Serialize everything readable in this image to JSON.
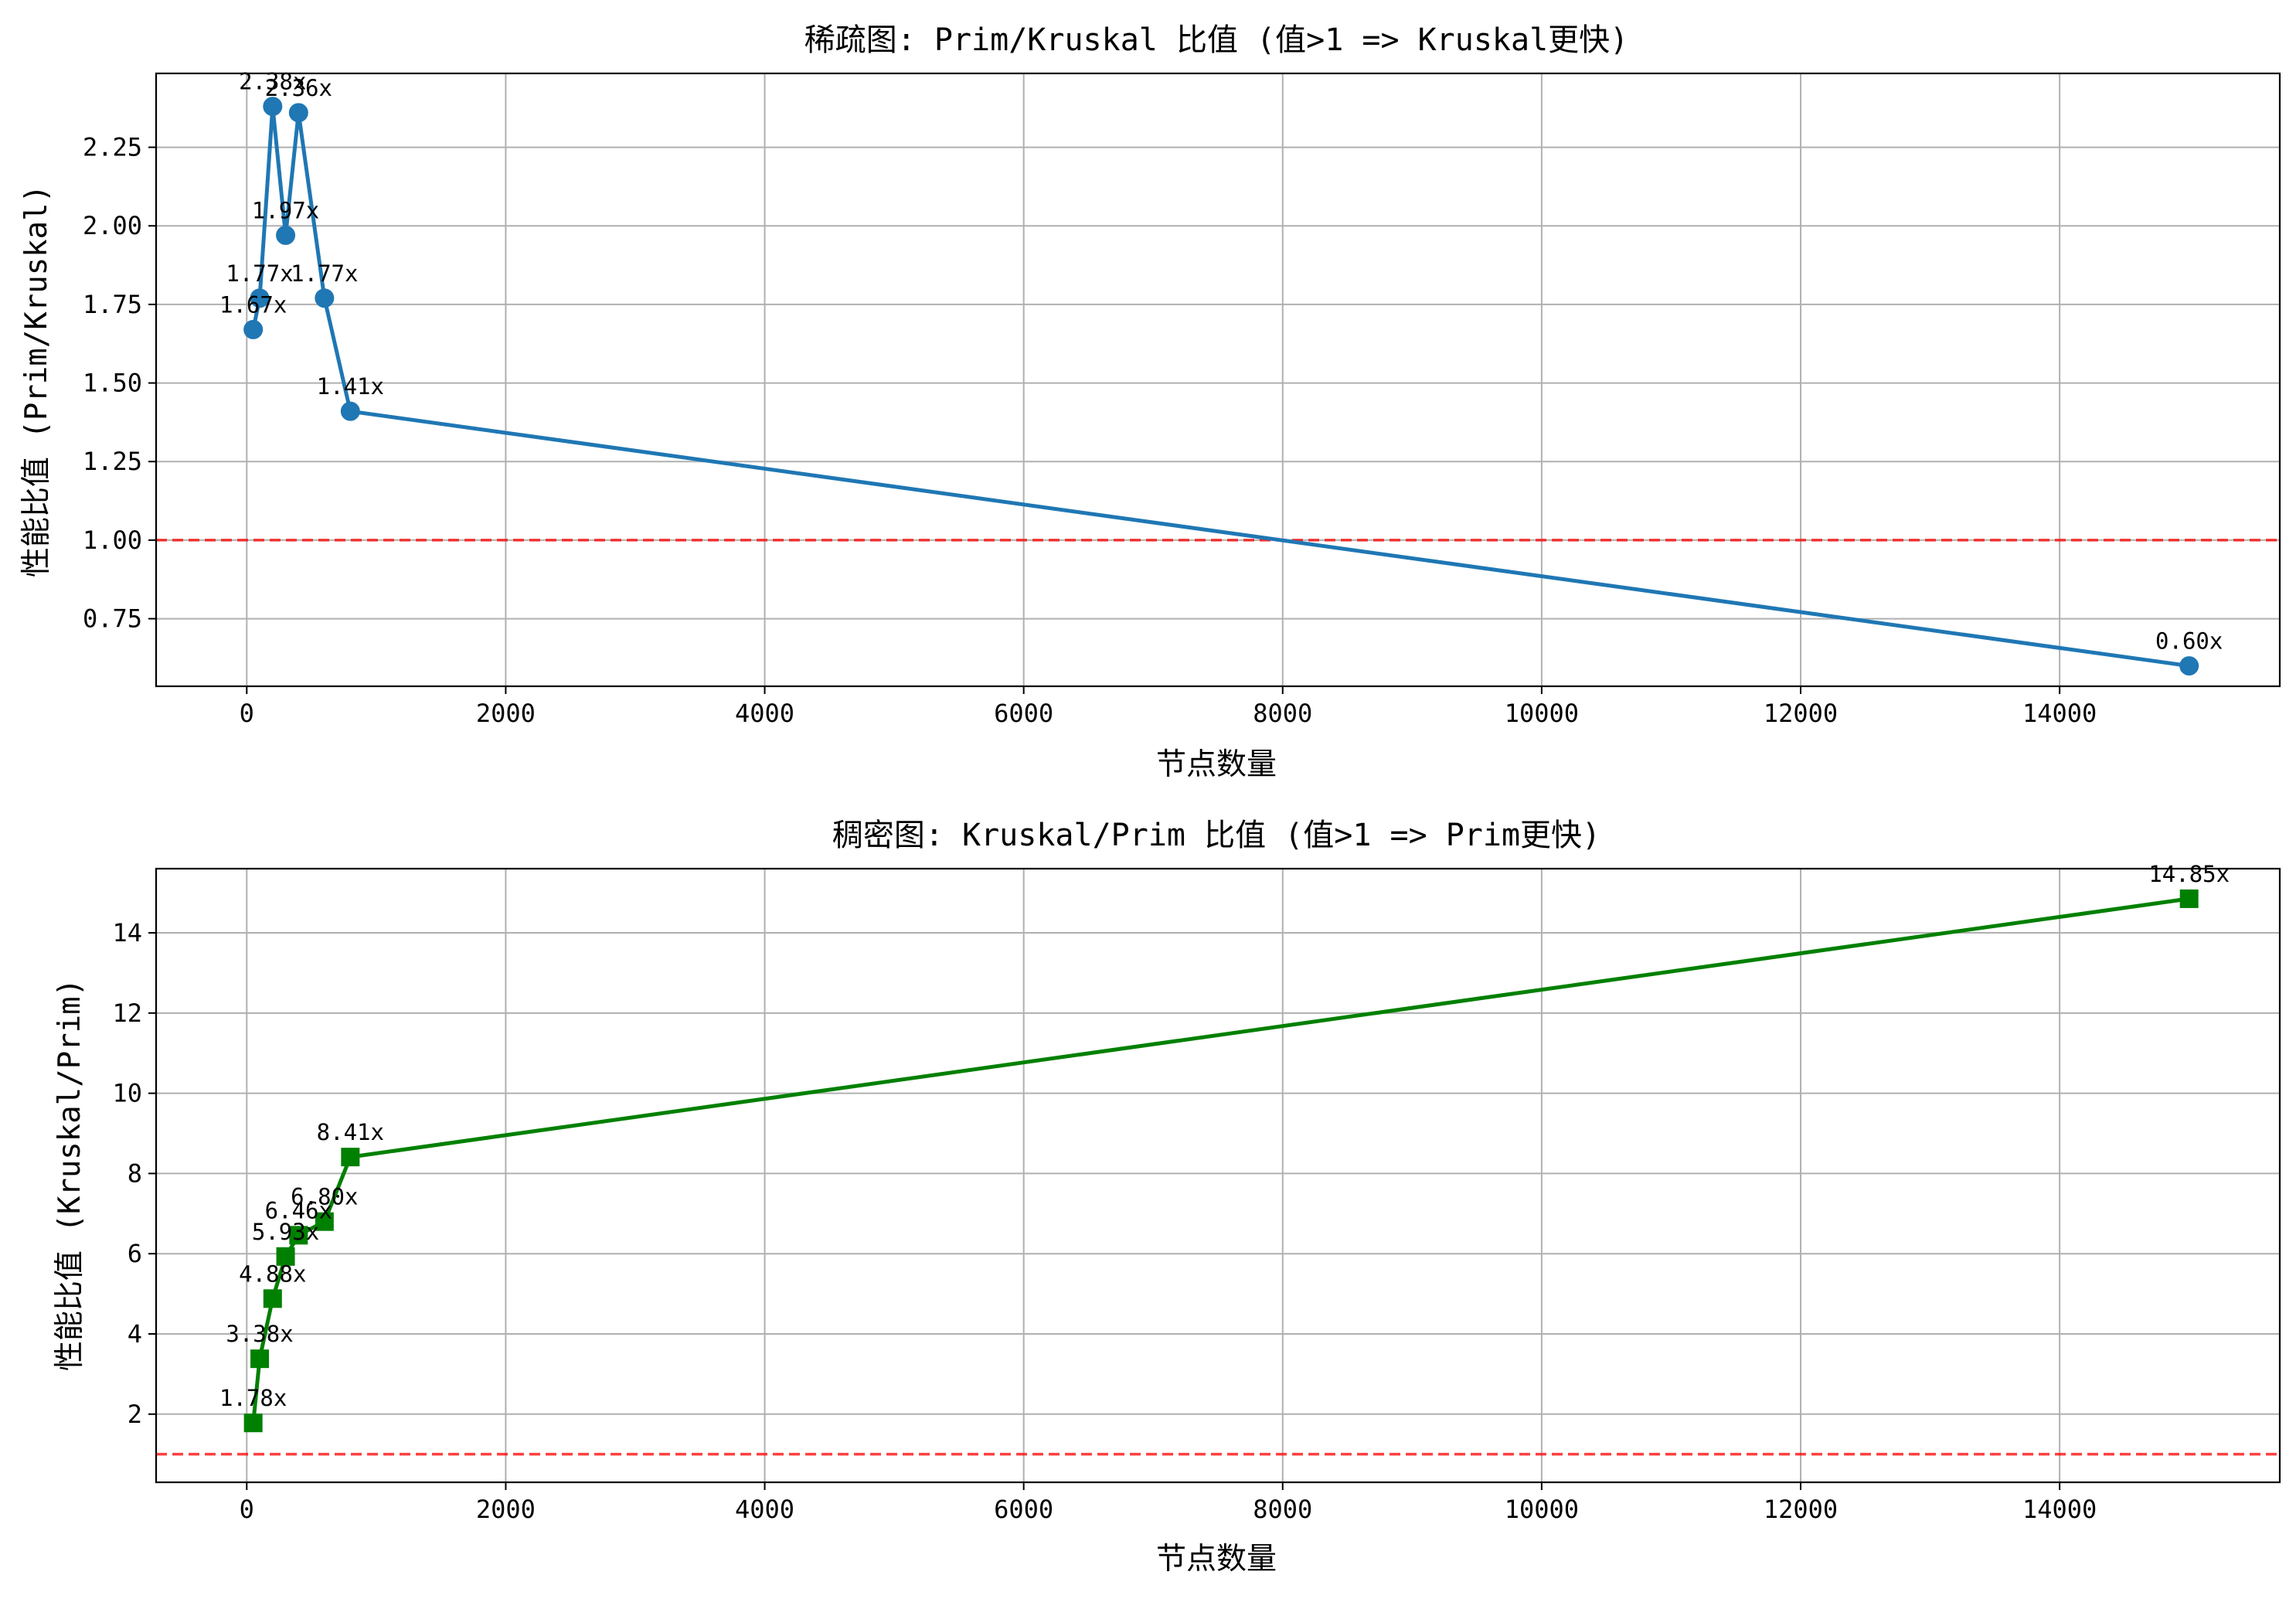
{
  "chart_data": [
    {
      "type": "line",
      "title": "稀疏图: Prim/Kruskal 比值 (值>1 => Kruskal更快)",
      "xlabel": "节点数量",
      "ylabel": "性能比值 (Prim/Kruskal)",
      "xlim": [
        -700,
        15700
      ],
      "ylim": [
        0.535,
        2.485
      ],
      "xticks": [
        0,
        2000,
        4000,
        6000,
        8000,
        10000,
        12000,
        14000
      ],
      "yticks": [
        0.75,
        1.0,
        1.25,
        1.5,
        1.75,
        2.0,
        2.25
      ],
      "ytick_labels": [
        "0.75",
        "1.00",
        "1.25",
        "1.50",
        "1.75",
        "2.00",
        "2.25"
      ],
      "grid": true,
      "reference_line": {
        "y": 1.0,
        "color": "#ff0000",
        "style": "dashed"
      },
      "series": [
        {
          "color": "#1f77b4",
          "marker": "circle",
          "x": [
            50,
            100,
            200,
            300,
            400,
            600,
            800,
            15000
          ],
          "y": [
            1.67,
            1.77,
            2.38,
            1.97,
            2.36,
            1.77,
            1.41,
            0.6
          ],
          "labels": [
            "1.67x",
            "1.77x",
            "2.38x",
            "1.97x",
            "2.36x",
            "1.77x",
            "1.41x",
            "0.60x"
          ]
        }
      ]
    },
    {
      "type": "line",
      "title": "稠密图: Kruskal/Prim 比值 (值>1 => Prim更快)",
      "xlabel": "节点数量",
      "ylabel": "性能比值 (Kruskal/Prim)",
      "xlim": [
        -700,
        15700
      ],
      "ylim": [
        0.3,
        15.6
      ],
      "xticks": [
        0,
        2000,
        4000,
        6000,
        8000,
        10000,
        12000,
        14000
      ],
      "yticks": [
        2,
        4,
        6,
        8,
        10,
        12,
        14
      ],
      "ytick_labels": [
        "2",
        "4",
        "6",
        "8",
        "10",
        "12",
        "14"
      ],
      "grid": true,
      "reference_line": {
        "y": 1.0,
        "color": "#ff0000",
        "style": "dashed"
      },
      "series": [
        {
          "color": "#008000",
          "marker": "square",
          "x": [
            50,
            100,
            200,
            300,
            400,
            600,
            800,
            15000
          ],
          "y": [
            1.78,
            3.38,
            4.88,
            5.93,
            6.46,
            6.8,
            8.41,
            14.85
          ],
          "labels": [
            "1.78x",
            "3.38x",
            "4.88x",
            "5.93x",
            "6.46x",
            "6.80x",
            "8.41x",
            "14.85x"
          ]
        }
      ]
    }
  ]
}
